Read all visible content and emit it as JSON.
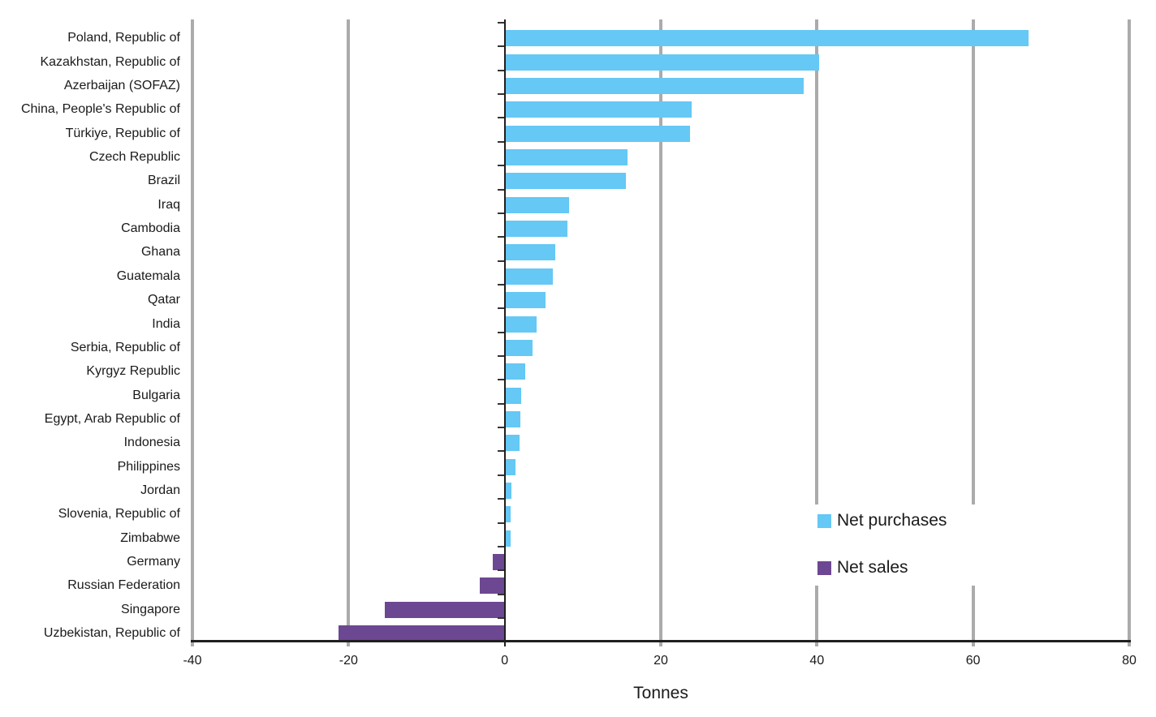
{
  "chart_data": {
    "type": "bar",
    "orientation": "horizontal",
    "title": "",
    "xlabel": "Tonnes",
    "unit": "tonnes",
    "xlim": [
      -40,
      80
    ],
    "xticks": [
      -40,
      -20,
      0,
      20,
      40,
      60,
      80
    ],
    "grid": "vertical gray gridlines at each 20-tonne tick; dark vertical line at zero; dark bottom axis",
    "legend_position": "inside lower right",
    "categories": [
      "Poland, Republic of",
      "Kazakhstan, Republic of",
      "Azerbaijan (SOFAZ)",
      "China, People's Republic of",
      "Türkiye, Republic of",
      "Czech Republic",
      "Brazil",
      "Iraq",
      "Cambodia",
      "Ghana",
      "Guatemala",
      "Qatar",
      "India",
      "Serbia, Republic of",
      "Kyrgyz Republic",
      "Bulgaria",
      "Egypt, Arab Republic of",
      "Indonesia",
      "Philippines",
      "Jordan",
      "Slovenia, Republic of",
      "Zimbabwe",
      "Germany",
      "Russian Federation",
      "Singapore",
      "Uzbekistan, Republic of"
    ],
    "values": [
      67.1,
      40.3,
      38.3,
      24.0,
      23.7,
      15.7,
      15.5,
      8.3,
      8.0,
      6.5,
      6.2,
      5.2,
      4.1,
      3.6,
      2.6,
      2.1,
      2.0,
      1.9,
      1.4,
      0.9,
      0.8,
      0.8,
      -1.5,
      -3.2,
      -15.4,
      -21.3
    ],
    "series_rule": "positive values belong to 'Net purchases', negative values to 'Net sales'",
    "legend": {
      "items": [
        {
          "label": "Net purchases",
          "color": "#65c8f5"
        },
        {
          "label": "Net sales",
          "color": "#6c4792"
        }
      ]
    }
  },
  "colors": {
    "bar_positive": "#65c8f5",
    "bar_negative": "#6c4792",
    "gridline": "#ababab",
    "axis": "#1f1f1f",
    "text": "#1a1a1a",
    "background": "#ffffff"
  }
}
